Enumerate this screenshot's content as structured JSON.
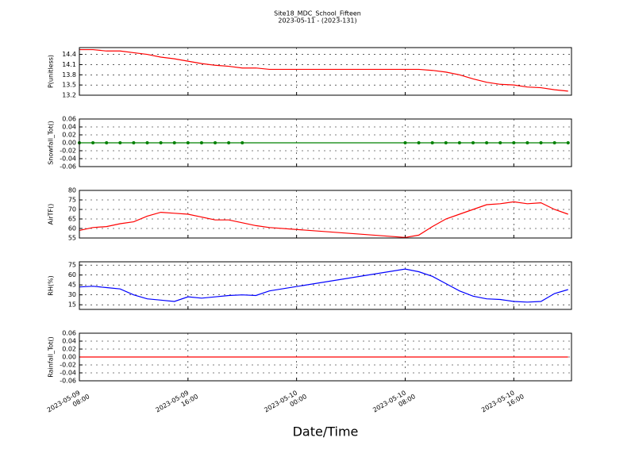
{
  "chart_data": [
    {
      "type": "line",
      "title": "Site18_MDC_School_Fifteen",
      "subtitle": "2023-05-11 - (2023-131)",
      "ylabel": "P(unitless)",
      "color": "#ff0000",
      "x": [
        "2023-05-09 08:00",
        "2023-05-09 09:00",
        "2023-05-09 10:00",
        "2023-05-09 11:00",
        "2023-05-09 12:00",
        "2023-05-09 13:00",
        "2023-05-09 14:00",
        "2023-05-09 15:00",
        "2023-05-09 16:00",
        "2023-05-09 17:00",
        "2023-05-09 18:00",
        "2023-05-09 19:00",
        "2023-05-09 20:00",
        "2023-05-09 21:00",
        "2023-05-09 22:00",
        "2023-05-10 08:00",
        "2023-05-10 09:00",
        "2023-05-10 10:00",
        "2023-05-10 11:00",
        "2023-05-10 12:00",
        "2023-05-10 13:00",
        "2023-05-10 14:00",
        "2023-05-10 15:00",
        "2023-05-10 16:00",
        "2023-05-10 17:00",
        "2023-05-10 18:00",
        "2023-05-10 19:00",
        "2023-05-10 20:00"
      ],
      "values": [
        14.54,
        14.54,
        14.5,
        14.5,
        14.45,
        14.4,
        14.32,
        14.27,
        14.2,
        14.13,
        14.08,
        14.05,
        14.0,
        14.0,
        13.96,
        13.96,
        13.96,
        13.93,
        13.88,
        13.8,
        13.68,
        13.58,
        13.52,
        13.5,
        13.44,
        13.42,
        13.36,
        13.32
      ],
      "xlim": [
        "2023-05-09 08:00",
        "2023-05-10 20:15"
      ],
      "ylim": [
        13.2,
        14.6
      ],
      "yticks": [
        13.2,
        13.5,
        13.8,
        14.1,
        14.4
      ],
      "grid": true
    },
    {
      "type": "line",
      "ylabel": "Snowfall_Tot()",
      "color": "#008000",
      "marker": "o",
      "x": [
        "2023-05-09 08:00",
        "2023-05-09 09:00",
        "2023-05-09 10:00",
        "2023-05-09 11:00",
        "2023-05-09 12:00",
        "2023-05-09 13:00",
        "2023-05-09 14:00",
        "2023-05-09 15:00",
        "2023-05-09 16:00",
        "2023-05-09 17:00",
        "2023-05-09 18:00",
        "2023-05-09 19:00",
        "2023-05-09 20:00",
        "2023-05-10 08:00",
        "2023-05-10 09:00",
        "2023-05-10 10:00",
        "2023-05-10 11:00",
        "2023-05-10 12:00",
        "2023-05-10 13:00",
        "2023-05-10 14:00",
        "2023-05-10 15:00",
        "2023-05-10 16:00",
        "2023-05-10 17:00",
        "2023-05-10 18:00",
        "2023-05-10 19:00",
        "2023-05-10 20:00"
      ],
      "values": [
        0,
        0,
        0,
        0,
        0,
        0,
        0,
        0,
        0,
        0,
        0,
        0,
        0,
        0,
        0,
        0,
        0,
        0,
        0,
        0,
        0,
        0,
        0,
        0,
        0,
        0
      ],
      "xlim": [
        "2023-05-09 08:00",
        "2023-05-10 20:15"
      ],
      "ylim": [
        -0.06,
        0.06
      ],
      "yticks": [
        -0.06,
        -0.04,
        -0.02,
        {
          "value": 0,
          "label": "0.00"
        },
        0.02,
        0.04,
        0.06
      ],
      "grid": true
    },
    {
      "type": "line",
      "ylabel": "AirTF()",
      "color": "#ff0000",
      "x": [
        "2023-05-09 08:00",
        "2023-05-09 09:00",
        "2023-05-09 10:00",
        "2023-05-09 11:00",
        "2023-05-09 12:00",
        "2023-05-09 13:00",
        "2023-05-09 14:00",
        "2023-05-09 15:00",
        "2023-05-09 16:00",
        "2023-05-09 17:00",
        "2023-05-09 18:00",
        "2023-05-09 19:00",
        "2023-05-09 20:00",
        "2023-05-09 21:00",
        "2023-05-09 22:00",
        "2023-05-10 08:00",
        "2023-05-10 09:00",
        "2023-05-10 10:00",
        "2023-05-10 11:00",
        "2023-05-10 12:00",
        "2023-05-10 13:00",
        "2023-05-10 14:00",
        "2023-05-10 15:00",
        "2023-05-10 16:00",
        "2023-05-10 17:00",
        "2023-05-10 18:00",
        "2023-05-10 19:00",
        "2023-05-10 20:00"
      ],
      "values": [
        59,
        60.5,
        61,
        62.5,
        63.5,
        66.5,
        68.5,
        68,
        67.5,
        66,
        64.5,
        64.5,
        63,
        61.5,
        60.5,
        55.3,
        56.5,
        61,
        65,
        67.5,
        70,
        72.5,
        73,
        74,
        73,
        73.5,
        70,
        67.5
      ],
      "xlim": [
        "2023-05-09 08:00",
        "2023-05-10 20:15"
      ],
      "ylim": [
        55,
        80
      ],
      "yticks": [
        55,
        60,
        65,
        70,
        75,
        80
      ],
      "grid": true
    },
    {
      "type": "line",
      "ylabel": "RH(%)",
      "color": "#0000ff",
      "x": [
        "2023-05-09 08:00",
        "2023-05-09 09:00",
        "2023-05-09 10:00",
        "2023-05-09 11:00",
        "2023-05-09 12:00",
        "2023-05-09 13:00",
        "2023-05-09 14:00",
        "2023-05-09 15:00",
        "2023-05-09 16:00",
        "2023-05-09 17:00",
        "2023-05-09 18:00",
        "2023-05-09 19:00",
        "2023-05-09 20:00",
        "2023-05-09 21:00",
        "2023-05-09 22:00",
        "2023-05-10 08:00",
        "2023-05-10 09:00",
        "2023-05-10 10:00",
        "2023-05-10 11:00",
        "2023-05-10 12:00",
        "2023-05-10 13:00",
        "2023-05-10 14:00",
        "2023-05-10 15:00",
        "2023-05-10 16:00",
        "2023-05-10 17:00",
        "2023-05-10 18:00",
        "2023-05-10 19:00",
        "2023-05-10 20:00"
      ],
      "values": [
        42,
        43,
        41,
        39,
        30,
        24,
        22,
        20,
        27,
        25,
        27,
        29,
        30,
        29,
        36,
        69,
        65,
        58,
        47,
        36,
        28,
        24,
        23,
        20,
        19,
        20,
        32,
        38
      ],
      "xlim": [
        "2023-05-09 08:00",
        "2023-05-10 20:15"
      ],
      "ylim": [
        8,
        80
      ],
      "yticks": [
        15,
        30,
        45,
        60,
        75
      ],
      "grid": true
    },
    {
      "type": "line",
      "ylabel": "Rainfall_Tot()",
      "xlabel": "Date/Time",
      "color": "#ff0000",
      "x": [
        "2023-05-09 08:00",
        "2023-05-09 12:00",
        "2023-05-09 16:00",
        "2023-05-09 20:00",
        "2023-05-10 08:00",
        "2023-05-10 12:00",
        "2023-05-10 16:00",
        "2023-05-10 20:00"
      ],
      "values": [
        0,
        0,
        0,
        0,
        0,
        0,
        0,
        0
      ],
      "xlim": [
        "2023-05-09 08:00",
        "2023-05-10 20:15"
      ],
      "ylim": [
        -0.06,
        0.06
      ],
      "yticks": [
        -0.06,
        -0.04,
        -0.02,
        {
          "value": 0,
          "label": "0.00"
        },
        0.02,
        0.04,
        0.06
      ],
      "xticks": [
        "2023-05-09 08:00",
        "2023-05-09 16:00",
        "2023-05-10 00:00",
        "2023-05-10 08:00",
        "2023-05-10 16:00"
      ],
      "grid": true
    }
  ]
}
